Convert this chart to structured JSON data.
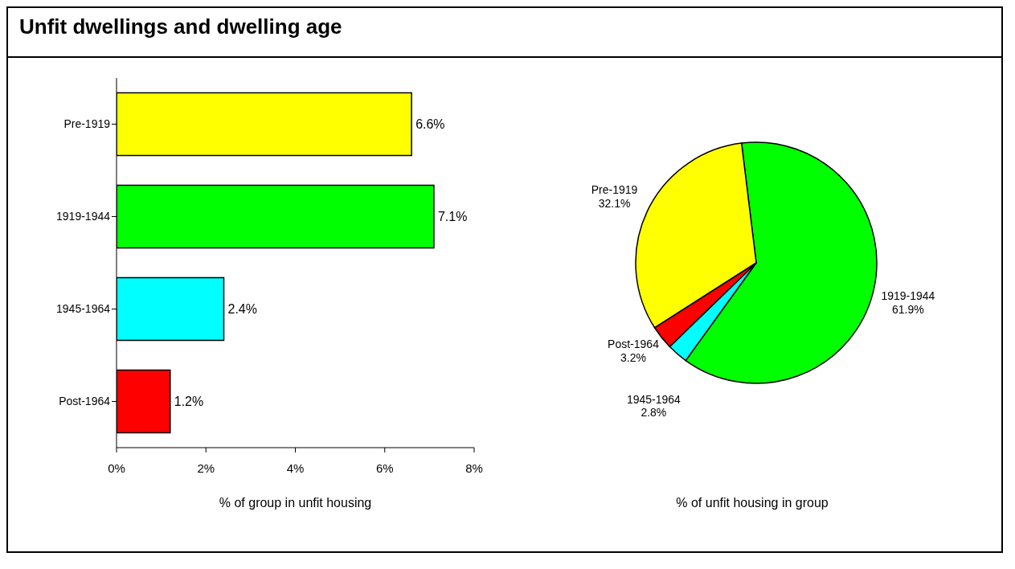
{
  "chart_data": [
    {
      "type": "bar",
      "title": "Unfit dwellings and dwelling age",
      "orientation": "horizontal",
      "categories": [
        "Pre-1919",
        "1919-1944",
        "1945-1964",
        "Post-1964"
      ],
      "values": [
        6.6,
        7.1,
        2.4,
        1.2
      ],
      "colors": [
        "#ffff00",
        "#00ff00",
        "#00ffff",
        "#ff0000"
      ],
      "value_labels": [
        "6.6%",
        "7.1%",
        "2.4%",
        "1.2%"
      ],
      "xlim": [
        0,
        8
      ],
      "xticks": [
        {
          "value": 0,
          "label": "0%"
        },
        {
          "value": 2,
          "label": "2%"
        },
        {
          "value": 4,
          "label": "4%"
        },
        {
          "value": 6,
          "label": "6%"
        },
        {
          "value": 8,
          "label": "8%"
        }
      ],
      "xlabel": "% of group in unfit housing",
      "grid": false,
      "legend": false
    },
    {
      "type": "pie",
      "categories": [
        "1919-1944",
        "1945-1964",
        "Post-1964",
        "Pre-1919"
      ],
      "values": [
        61.9,
        2.8,
        3.2,
        32.1
      ],
      "colors": [
        "#00ff00",
        "#00ffff",
        "#ff0000",
        "#ffff00"
      ],
      "value_labels": [
        "61.9%",
        "2.8%",
        "3.2%",
        "32.1%"
      ],
      "xlabel": "% of unfit housing in group",
      "legend": false
    }
  ]
}
